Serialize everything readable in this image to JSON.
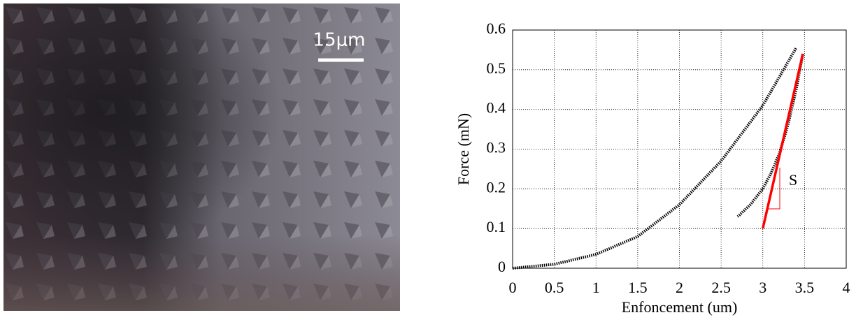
{
  "image": {
    "scale_label": "15μm"
  },
  "chart_data": {
    "type": "line",
    "xlabel": "Enfoncement (um)",
    "ylabel": "Force (mN)",
    "xlim": [
      0,
      4
    ],
    "ylim": [
      0,
      0.6
    ],
    "xticks": [
      0,
      0.5,
      1,
      1.5,
      2,
      2.5,
      3,
      3.5,
      4
    ],
    "yticks": [
      0,
      0.1,
      0.2,
      0.3,
      0.4,
      0.5,
      0.6
    ],
    "grid": true,
    "series": [
      {
        "color": "#000000",
        "style": "dotted",
        "x": [
          0,
          0.5,
          1,
          1.5,
          2,
          2.5,
          3,
          3.4
        ],
        "values": [
          0,
          0.01,
          0.035,
          0.08,
          0.16,
          0.27,
          0.41,
          0.555
        ]
      },
      {
        "color": "#000000",
        "style": "dotted",
        "x": [
          3.48,
          3.4,
          3.3,
          3.2,
          3.1,
          3.0,
          2.85,
          2.7
        ],
        "values": [
          0.54,
          0.45,
          0.36,
          0.29,
          0.24,
          0.2,
          0.16,
          0.13
        ]
      },
      {
        "color": "#ff0000",
        "style": "solid",
        "x": [
          3.0,
          3.48
        ],
        "values": [
          0.1,
          0.54
        ]
      }
    ],
    "annotations": [
      "S"
    ]
  }
}
